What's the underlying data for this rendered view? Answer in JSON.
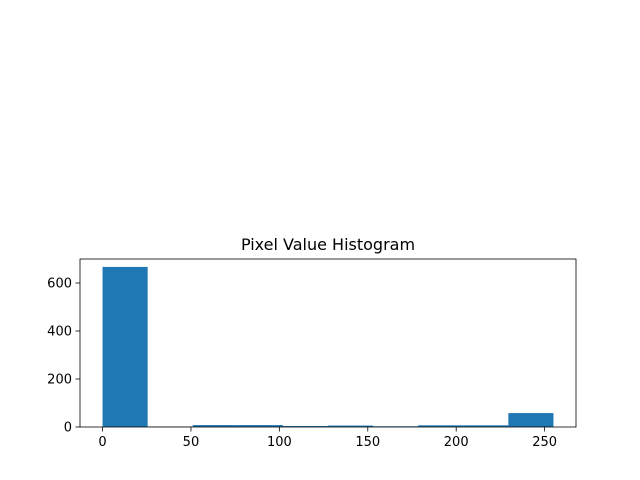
{
  "chart_data": {
    "type": "bar",
    "title": "Pixel Value Histogram",
    "xlabel": "",
    "ylabel": "",
    "bins": [
      {
        "start": 0.0,
        "end": 25.5,
        "count": 667
      },
      {
        "start": 25.5,
        "end": 51.0,
        "count": 2
      },
      {
        "start": 51.0,
        "end": 76.5,
        "count": 8
      },
      {
        "start": 76.5,
        "end": 102.0,
        "count": 8
      },
      {
        "start": 102.0,
        "end": 127.5,
        "count": 4
      },
      {
        "start": 127.5,
        "end": 153.0,
        "count": 6
      },
      {
        "start": 153.0,
        "end": 178.5,
        "count": 3
      },
      {
        "start": 178.5,
        "end": 204.0,
        "count": 7
      },
      {
        "start": 204.0,
        "end": 229.5,
        "count": 7
      },
      {
        "start": 229.5,
        "end": 255.0,
        "count": 58
      }
    ],
    "xlim": [
      -12.75,
      267.75
    ],
    "ylim": [
      0,
      700
    ],
    "xticks": [
      0,
      50,
      100,
      150,
      200,
      250
    ],
    "xtick_labels": [
      "0",
      "50",
      "100",
      "150",
      "200",
      "250"
    ],
    "yticks": [
      0,
      200,
      400,
      600
    ],
    "ytick_labels": [
      "0",
      "200",
      "400",
      "600"
    ],
    "grid": false,
    "bar_color": "#1f77b4"
  }
}
